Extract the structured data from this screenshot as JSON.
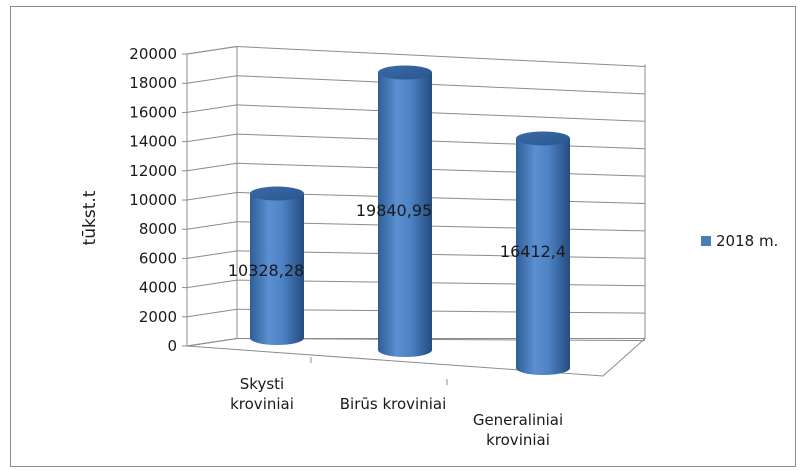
{
  "chart_data": {
    "type": "bar",
    "style": "3d-cylinder",
    "categories": [
      [
        "Skysti",
        "kroviniai"
      ],
      [
        "Birūs kroviniai"
      ],
      [
        "Generaliniai",
        "kroviniai"
      ]
    ],
    "series": [
      {
        "name": "2018 m.",
        "values": [
          10328.28,
          19840.95,
          16412.4
        ],
        "color": "#4a7ebb"
      }
    ],
    "data_labels": [
      "10328,28",
      "19840,95",
      "16412,4"
    ],
    "ylabel": "tūkst.t",
    "xlabel": "",
    "ylim": [
      0,
      20000
    ],
    "yticks": [
      0,
      2000,
      4000,
      6000,
      8000,
      10000,
      12000,
      14000,
      16000,
      18000,
      20000
    ],
    "grid": true,
    "legend_position": "right"
  }
}
